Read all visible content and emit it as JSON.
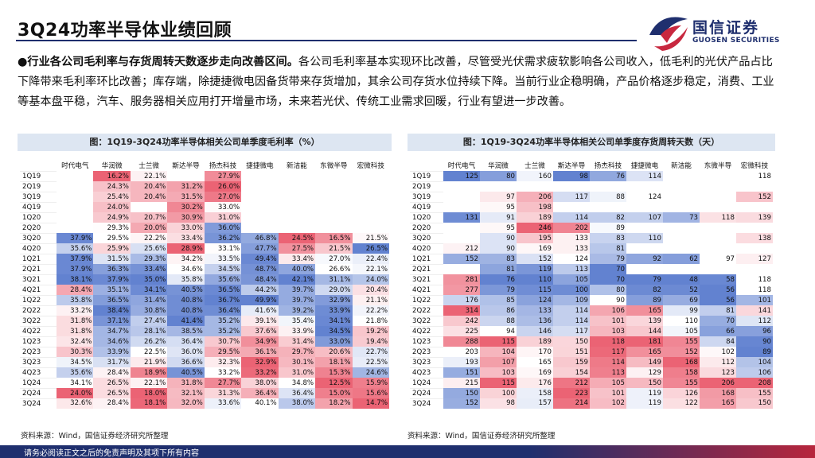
{
  "header": {
    "title": "3Q24功率半导体业绩回顾",
    "logo_cn": "国信证券",
    "logo_en": "GUOSEN SECURITIES"
  },
  "intro": {
    "bullet": "●",
    "bold": "行业各公司毛利率与存货周转天数逐步走向改善区间。",
    "text": "各公司毛利率基本实现环比改善，尽管受光伏需求疲软影响各公司收入，低毛利的光伏产品占比下降带来毛利率环比改善；库存端，除捷捷微电因备货带来存货增加，其余公司存货水位持续下降。当前行业企稳明确，产品价格逐步稳定，消费、工业等基本盘平稳，汽车、服务器相关应用打开增量市场，未来若光伏、传统工业需求回暖，行业有望进一步改善。"
  },
  "chart_data": [
    {
      "type": "table",
      "title": "图：1Q19-3Q24功率半导体相关公司单季度毛利率（%）",
      "columns": [
        "时代电气",
        "华润微",
        "士兰微",
        "斯达半导",
        "扬杰科技",
        "捷捷微电",
        "新洁能",
        "东微半导",
        "宏微科技"
      ],
      "rows": [
        [
          "1Q19",
          "",
          "16.2%",
          "22.1%",
          "",
          "27.9%",
          "",
          "",
          "",
          ""
        ],
        [
          "2Q19",
          "",
          "24.3%",
          "20.4%",
          "31.2%",
          "26.0%",
          "",
          "",
          "",
          ""
        ],
        [
          "3Q19",
          "",
          "25.4%",
          "20.4%",
          "31.5%",
          "27.0%",
          "",
          "",
          "",
          ""
        ],
        [
          "4Q19",
          "",
          "24.0%",
          "",
          "30.2%",
          "33.0%",
          "",
          "",
          "",
          ""
        ],
        [
          "1Q20",
          "",
          "24.9%",
          "20.7%",
          "30.9%",
          "31.0%",
          "",
          "",
          "",
          ""
        ],
        [
          "2Q20",
          "",
          "29.3%",
          "20.0%",
          "33.0%",
          "36.0%",
          "",
          "",
          "",
          ""
        ],
        [
          "3Q20",
          "37.9%",
          "29.5%",
          "22.2%",
          "33.4%",
          "36.2%",
          "46.8%",
          "24.5%",
          "16.5%",
          "21.5%"
        ],
        [
          "4Q20",
          "35.6%",
          "25.9%",
          "25.6%",
          "28.9%",
          "33.1%",
          "47.7%",
          "27.5%",
          "21.5%",
          "26.5%"
        ],
        [
          "1Q21",
          "37.9%",
          "31.5%",
          "29.3%",
          "34.2%",
          "33.5%",
          "49.4%",
          "33.4%",
          "27.0%",
          "22.4%"
        ],
        [
          "2Q21",
          "37.9%",
          "36.3%",
          "33.4%",
          "34.6%",
          "34.5%",
          "48.7%",
          "40.0%",
          "26.6%",
          "22.1%"
        ],
        [
          "3Q21",
          "38.1%",
          "37.9%",
          "35.0%",
          "35.8%",
          "35.6%",
          "48.4%",
          "42.1%",
          "31.1%",
          "24.0%"
        ],
        [
          "4Q21",
          "28.4%",
          "35.1%",
          "34.1%",
          "40.5%",
          "36.5%",
          "44.2%",
          "39.7%",
          "29.0%",
          "20.4%"
        ],
        [
          "1Q22",
          "35.8%",
          "36.5%",
          "31.4%",
          "40.8%",
          "36.7%",
          "49.9%",
          "39.7%",
          "32.9%",
          "21.1%"
        ],
        [
          "2Q22",
          "33.2%",
          "38.4%",
          "30.8%",
          "40.8%",
          "36.4%",
          "41.6%",
          "39.2%",
          "33.9%",
          "22.2%"
        ],
        [
          "3Q22",
          "31.8%",
          "37.1%",
          "27.4%",
          "41.4%",
          "35.2%",
          "39.1%",
          "35.4%",
          "34.1%",
          "21.8%"
        ],
        [
          "4Q22",
          "31.8%",
          "34.7%",
          "28.1%",
          "38.5%",
          "35.2%",
          "37.6%",
          "33.9%",
          "34.5%",
          "19.2%"
        ],
        [
          "1Q23",
          "32.4%",
          "34.6%",
          "26.2%",
          "36.4%",
          "30.7%",
          "34.9%",
          "31.4%",
          "33.0%",
          "19.4%"
        ],
        [
          "2Q23",
          "30.3%",
          "33.9%",
          "22.5%",
          "36.0%",
          "29.5%",
          "36.1%",
          "29.7%",
          "20.6%",
          "22.7%"
        ],
        [
          "3Q23",
          "34.5%",
          "31.7%",
          "21.9%",
          "36.6%",
          "32.3%",
          "32.9%",
          "30.1%",
          "18.1%",
          "22.5%"
        ],
        [
          "4Q23",
          "35.6%",
          "28.4%",
          "18.9%",
          "40.5%",
          "33.2%",
          "33.2%",
          "31.0%",
          "15.3%",
          "24.6%"
        ],
        [
          "1Q24",
          "34.1%",
          "26.5%",
          "22.1%",
          "31.8%",
          "27.7%",
          "38.0%",
          "34.8%",
          "12.5%",
          "15.9%"
        ],
        [
          "2Q24",
          "24.0%",
          "26.5%",
          "18.0%",
          "32.1%",
          "31.3%",
          "36.4%",
          "36.4%",
          "15.0%",
          "15.6%"
        ],
        [
          "3Q24",
          "32.6%",
          "28.4%",
          "18.1%",
          "32.0%",
          "33.6%",
          "40.1%",
          "38.0%",
          "18.2%",
          "14.7%"
        ]
      ]
    },
    {
      "type": "table",
      "title": "图：1Q19-3Q24功率半导体相关公司单季度存货周转天数（天）",
      "columns": [
        "时代电气",
        "华润微",
        "士兰微",
        "斯达半导",
        "扬杰科技",
        "捷捷微电",
        "新洁能",
        "东微半导",
        "宏微科技"
      ],
      "rows": [
        [
          "1Q19",
          "125",
          "80",
          "160",
          "98",
          "76",
          "114",
          "",
          "",
          "118"
        ],
        [
          "2Q19",
          "",
          "",
          "",
          "",
          "",
          "",
          "",
          "",
          ""
        ],
        [
          "3Q19",
          "",
          "97",
          "206",
          "117",
          "88",
          "124",
          "",
          "",
          "152"
        ],
        [
          "4Q19",
          "",
          "95",
          "198",
          "",
          "",
          "",
          "",
          "",
          ""
        ],
        [
          "1Q20",
          "131",
          "91",
          "189",
          "114",
          "82",
          "107",
          "73",
          "118",
          "139"
        ],
        [
          "2Q20",
          "",
          "95",
          "246",
          "202",
          "89",
          "",
          "",
          "",
          ""
        ],
        [
          "3Q20",
          "",
          "90",
          "195",
          "133",
          "83",
          "110",
          "",
          "",
          "138"
        ],
        [
          "4Q20",
          "212",
          "90",
          "169",
          "133",
          "81",
          "",
          "",
          "",
          ""
        ],
        [
          "1Q21",
          "152",
          "83",
          "152",
          "124",
          "79",
          "92",
          "62",
          "97",
          "127"
        ],
        [
          "2Q21",
          "",
          "81",
          "119",
          "113",
          "70",
          "",
          "",
          "",
          ""
        ],
        [
          "3Q21",
          "281",
          "76",
          "110",
          "105",
          "70",
          "79",
          "48",
          "58",
          "118"
        ],
        [
          "4Q21",
          "277",
          "79",
          "115",
          "100",
          "80",
          "82",
          "52",
          "56",
          "118"
        ],
        [
          "1Q22",
          "176",
          "85",
          "124",
          "109",
          "90",
          "89",
          "69",
          "56",
          "101"
        ],
        [
          "2Q22",
          "314",
          "86",
          "133",
          "114",
          "106",
          "165",
          "99",
          "81",
          "141"
        ],
        [
          "3Q22",
          "242",
          "88",
          "136",
          "114",
          "101",
          "139",
          "110",
          "70",
          "112"
        ],
        [
          "4Q22",
          "225",
          "94",
          "146",
          "117",
          "103",
          "144",
          "105",
          "66",
          "96"
        ],
        [
          "1Q23",
          "288",
          "115",
          "189",
          "150",
          "118",
          "181",
          "155",
          "84",
          "90"
        ],
        [
          "2Q23",
          "203",
          "104",
          "170",
          "151",
          "117",
          "165",
          "152",
          "102",
          "89"
        ],
        [
          "3Q23",
          "193",
          "107",
          "165",
          "159",
          "114",
          "149",
          "168",
          "112",
          "104"
        ],
        [
          "4Q23",
          "151",
          "103",
          "169",
          "154",
          "113",
          "129",
          "158",
          "123",
          "106"
        ],
        [
          "1Q24",
          "215",
          "115",
          "176",
          "212",
          "105",
          "150",
          "155",
          "206",
          "208"
        ],
        [
          "2Q24",
          "150",
          "100",
          "158",
          "223",
          "101",
          "119",
          "126",
          "168",
          "155"
        ],
        [
          "3Q24",
          "152",
          "98",
          "157",
          "214",
          "102",
          "119",
          "122",
          "165",
          "150"
        ]
      ]
    }
  ],
  "sources": {
    "left": "资料来源：Wind，国信证券经济研究所整理",
    "right": "资料来源：Wind，国信证券经济研究所整理"
  },
  "footer": {
    "text": "请务必阅读正文之后的免责声明及其项下所有内容"
  }
}
